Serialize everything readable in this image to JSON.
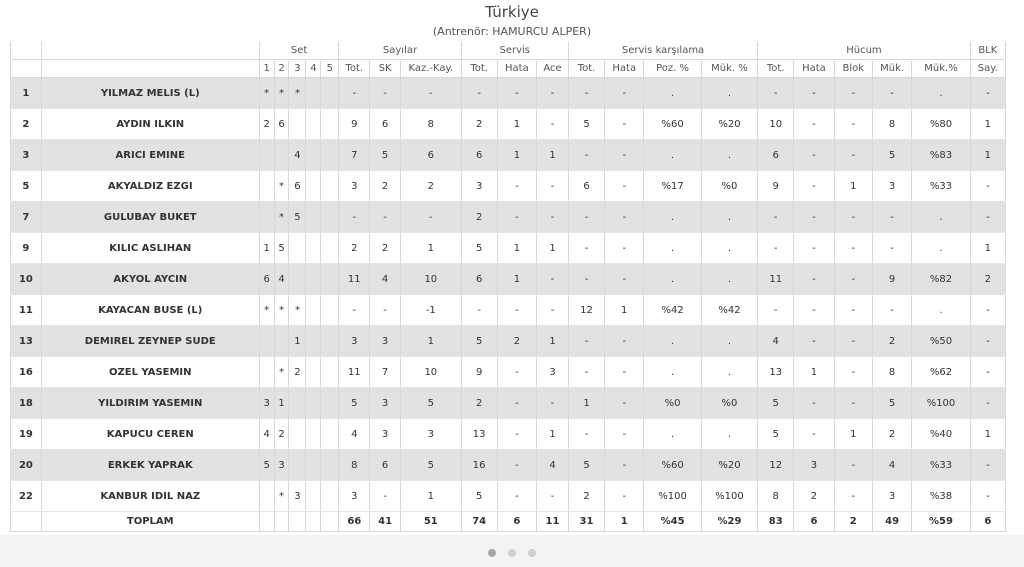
{
  "header": {
    "title": "Türkiye",
    "subtitle": "(Antrenör: HAMURCU ALPER)"
  },
  "groups": {
    "set": "Set",
    "sayilar": "Sayılar",
    "servis": "Servis",
    "servis_karsilama": "Servis karşılama",
    "hucum": "Hücum",
    "blk": "BLK"
  },
  "columns": [
    "1",
    "2",
    "3",
    "4",
    "5",
    "Tot.",
    "SK",
    "Kaz.-Kay.",
    "Tot.",
    "Hata",
    "Ace",
    "Tot.",
    "Hata",
    "Poz. %",
    "Mük. %",
    "Tot.",
    "Hata",
    "Blok",
    "Mük.",
    "Mük.%",
    "Say."
  ],
  "rows": [
    {
      "no": "1",
      "name": "YILMAZ MELIS (L)",
      "cells": [
        "*",
        "*",
        "*",
        "",
        "",
        "-",
        "-",
        "-",
        "-",
        "-",
        "-",
        "-",
        "-",
        ".",
        ".",
        "-",
        "-",
        "-",
        "-",
        ".",
        "-"
      ]
    },
    {
      "no": "2",
      "name": "AYDIN ILKIN",
      "cells": [
        "2",
        "6",
        "",
        "",
        "",
        "9",
        "6",
        "8",
        "2",
        "1",
        "-",
        "5",
        "-",
        "%60",
        "%20",
        "10",
        "-",
        "-",
        "8",
        "%80",
        "1"
      ]
    },
    {
      "no": "3",
      "name": "ARICI EMINE",
      "cells": [
        "",
        "",
        "4",
        "",
        "",
        "7",
        "5",
        "6",
        "6",
        "1",
        "1",
        "-",
        "-",
        ".",
        ".",
        "6",
        "-",
        "-",
        "5",
        "%83",
        "1"
      ]
    },
    {
      "no": "5",
      "name": "AKYALDIZ EZGI",
      "cells": [
        "",
        "*",
        "6",
        "",
        "",
        "3",
        "2",
        "2",
        "3",
        "-",
        "-",
        "6",
        "-",
        "%17",
        "%0",
        "9",
        "-",
        "1",
        "3",
        "%33",
        "-"
      ]
    },
    {
      "no": "7",
      "name": "GULUBAY BUKET",
      "cells": [
        "",
        "*",
        "5",
        "",
        "",
        "-",
        "-",
        "-",
        "2",
        "-",
        "-",
        "-",
        "-",
        ".",
        ".",
        "-",
        "-",
        "-",
        "-",
        ".",
        "-"
      ]
    },
    {
      "no": "9",
      "name": "KILIC ASLIHAN",
      "cells": [
        "1",
        "5",
        "",
        "",
        "",
        "2",
        "2",
        "1",
        "5",
        "1",
        "1",
        "-",
        "-",
        ".",
        ".",
        "-",
        "-",
        "-",
        "-",
        ".",
        "1"
      ]
    },
    {
      "no": "10",
      "name": "AKYOL AYCIN",
      "cells": [
        "6",
        "4",
        "",
        "",
        "",
        "11",
        "4",
        "10",
        "6",
        "1",
        "-",
        "-",
        "-",
        ".",
        ".",
        "11",
        "-",
        "-",
        "9",
        "%82",
        "2"
      ]
    },
    {
      "no": "11",
      "name": "KAYACAN BUSE (L)",
      "cells": [
        "*",
        "*",
        "*",
        "",
        "",
        "-",
        "-",
        "-1",
        "-",
        "-",
        "-",
        "12",
        "1",
        "%42",
        "%42",
        "-",
        "-",
        "-",
        "-",
        ".",
        "-"
      ]
    },
    {
      "no": "13",
      "name": "DEMIREL ZEYNEP SUDE",
      "cells": [
        "",
        "",
        "1",
        "",
        "",
        "3",
        "3",
        "1",
        "5",
        "2",
        "1",
        "-",
        "-",
        ".",
        ".",
        "4",
        "-",
        "-",
        "2",
        "%50",
        "-"
      ]
    },
    {
      "no": "16",
      "name": "OZEL YASEMIN",
      "cells": [
        "",
        "*",
        "2",
        "",
        "",
        "11",
        "7",
        "10",
        "9",
        "-",
        "3",
        "-",
        "-",
        ".",
        ".",
        "13",
        "1",
        "-",
        "8",
        "%62",
        "-"
      ]
    },
    {
      "no": "18",
      "name": "YILDIRIM YASEMIN",
      "cells": [
        "3",
        "1",
        "",
        "",
        "",
        "5",
        "3",
        "5",
        "2",
        "-",
        "-",
        "1",
        "-",
        "%0",
        "%0",
        "5",
        "-",
        "-",
        "5",
        "%100",
        "-"
      ]
    },
    {
      "no": "19",
      "name": "KAPUCU CEREN",
      "cells": [
        "4",
        "2",
        "",
        "",
        "",
        "4",
        "3",
        "3",
        "13",
        "-",
        "1",
        "-",
        "-",
        ".",
        ".",
        "5",
        "-",
        "1",
        "2",
        "%40",
        "1"
      ]
    },
    {
      "no": "20",
      "name": "ERKEK YAPRAK",
      "cells": [
        "5",
        "3",
        "",
        "",
        "",
        "8",
        "6",
        "5",
        "16",
        "-",
        "4",
        "5",
        "-",
        "%60",
        "%20",
        "12",
        "3",
        "-",
        "4",
        "%33",
        "-"
      ]
    },
    {
      "no": "22",
      "name": "KANBUR IDIL NAZ",
      "cells": [
        "",
        "*",
        "3",
        "",
        "",
        "3",
        "-",
        "1",
        "5",
        "-",
        "-",
        "2",
        "-",
        "%100",
        "%100",
        "8",
        "2",
        "-",
        "3",
        "%38",
        "-"
      ]
    }
  ],
  "total": {
    "label": "TOPLAM",
    "cells": [
      "",
      "",
      "",
      "",
      "",
      "66",
      "41",
      "51",
      "74",
      "6",
      "11",
      "31",
      "1",
      "%45",
      "%29",
      "83",
      "6",
      "2",
      "49",
      "%59",
      "6"
    ]
  },
  "pagination": {
    "pages": 3,
    "active": 0
  }
}
